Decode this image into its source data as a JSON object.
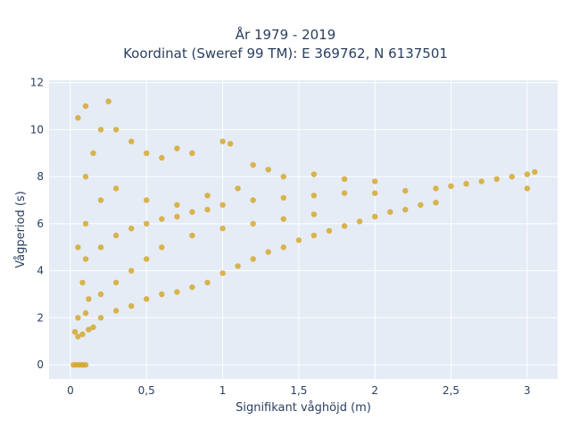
{
  "chart_data": {
    "type": "scatter",
    "title_lines": [
      "År 1979 - 2019",
      "Koordinat (Sweref 99 TM): E 369762, N 6137501"
    ],
    "xlabel": "Signifikant våghöjd (m)",
    "ylabel": "Vågperiod (s)",
    "xlim": [
      -0.14,
      3.2
    ],
    "ylim": [
      -0.6,
      12.1
    ],
    "x_ticks": [
      0,
      0.5,
      1,
      1.5,
      2,
      2.5,
      3
    ],
    "x_tick_labels": [
      "0",
      "0,5",
      "1",
      "1,5",
      "2",
      "2,5",
      "3"
    ],
    "y_ticks": [
      0,
      2,
      4,
      6,
      8,
      10,
      12
    ],
    "y_tick_labels": [
      "0",
      "2",
      "4",
      "6",
      "8",
      "10",
      "12"
    ],
    "grid": true,
    "marker_color": "#D4A421",
    "plot_bgcolor": "#E5ECF6",
    "series": [
      {
        "points": [
          [
            0.02,
            0
          ],
          [
            0.04,
            0
          ],
          [
            0.06,
            0
          ],
          [
            0.08,
            0
          ],
          [
            0.1,
            0
          ],
          [
            0.03,
            1.4
          ],
          [
            0.05,
            1.2
          ],
          [
            0.08,
            1.3
          ],
          [
            0.12,
            1.5
          ],
          [
            0.15,
            1.6
          ],
          [
            0.05,
            2.0
          ],
          [
            0.1,
            2.2
          ],
          [
            0.2,
            2.0
          ],
          [
            0.3,
            2.3
          ],
          [
            0.4,
            2.5
          ],
          [
            0.5,
            2.8
          ],
          [
            0.6,
            3.0
          ],
          [
            0.7,
            3.1
          ],
          [
            0.8,
            3.3
          ],
          [
            0.9,
            3.5
          ],
          [
            1.0,
            3.9
          ],
          [
            1.1,
            4.2
          ],
          [
            1.2,
            4.5
          ],
          [
            1.3,
            4.8
          ],
          [
            1.4,
            5.0
          ],
          [
            1.5,
            5.3
          ],
          [
            1.6,
            5.5
          ],
          [
            1.7,
            5.7
          ],
          [
            1.8,
            5.9
          ],
          [
            1.9,
            6.1
          ],
          [
            2.0,
            6.3
          ],
          [
            2.1,
            6.5
          ],
          [
            2.2,
            6.6
          ],
          [
            2.3,
            6.8
          ],
          [
            2.4,
            6.9
          ],
          [
            0.1,
            4.5
          ],
          [
            0.2,
            5.0
          ],
          [
            0.3,
            5.5
          ],
          [
            0.4,
            5.8
          ],
          [
            0.5,
            6.0
          ],
          [
            0.6,
            6.2
          ],
          [
            0.7,
            6.3
          ],
          [
            0.8,
            6.5
          ],
          [
            0.9,
            6.6
          ],
          [
            1.0,
            6.8
          ],
          [
            1.2,
            7.0
          ],
          [
            1.4,
            7.1
          ],
          [
            1.6,
            7.2
          ],
          [
            1.8,
            7.3
          ],
          [
            2.0,
            7.3
          ],
          [
            2.2,
            7.4
          ],
          [
            2.4,
            7.5
          ],
          [
            2.5,
            7.6
          ],
          [
            2.6,
            7.7
          ],
          [
            2.7,
            7.8
          ],
          [
            2.8,
            7.9
          ],
          [
            2.9,
            8.0
          ],
          [
            3.0,
            8.1
          ],
          [
            3.05,
            8.2
          ],
          [
            3.0,
            7.5
          ],
          [
            0.1,
            8.0
          ],
          [
            0.15,
            9.0
          ],
          [
            0.2,
            10.0
          ],
          [
            0.1,
            11.0
          ],
          [
            0.05,
            10.5
          ],
          [
            0.25,
            11.2
          ],
          [
            0.3,
            10.0
          ],
          [
            0.4,
            9.5
          ],
          [
            0.5,
            9.0
          ],
          [
            0.6,
            8.8
          ],
          [
            0.7,
            9.2
          ],
          [
            0.8,
            9.0
          ],
          [
            1.0,
            9.5
          ],
          [
            1.05,
            9.4
          ],
          [
            1.2,
            8.5
          ],
          [
            1.3,
            8.3
          ],
          [
            1.4,
            8.0
          ],
          [
            1.6,
            8.1
          ],
          [
            1.8,
            7.9
          ],
          [
            2.0,
            7.8
          ],
          [
            0.3,
            7.5
          ],
          [
            0.5,
            7.0
          ],
          [
            0.7,
            6.8
          ],
          [
            0.9,
            7.2
          ],
          [
            1.1,
            7.5
          ],
          [
            0.2,
            3.0
          ],
          [
            0.3,
            3.5
          ],
          [
            0.4,
            4.0
          ],
          [
            0.5,
            4.5
          ],
          [
            0.6,
            5.0
          ],
          [
            0.8,
            5.5
          ],
          [
            1.0,
            5.8
          ],
          [
            1.2,
            6.0
          ],
          [
            1.4,
            6.2
          ],
          [
            1.6,
            6.4
          ],
          [
            0.1,
            6.0
          ],
          [
            0.2,
            7.0
          ],
          [
            0.05,
            5.0
          ],
          [
            0.08,
            3.5
          ],
          [
            0.12,
            2.8
          ]
        ]
      }
    ]
  }
}
